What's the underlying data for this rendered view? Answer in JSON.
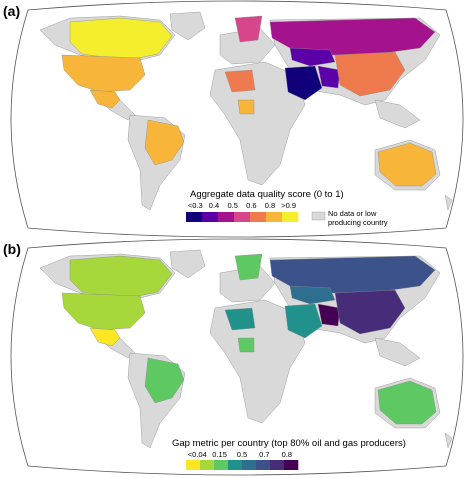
{
  "panel_a": {
    "label": "(a)",
    "legend": {
      "title": "Aggregate data quality score (0 to 1)",
      "ticks": [
        "<0.3",
        "0.4",
        "0.5",
        "0.6",
        "0.8",
        ">0.9"
      ],
      "colors": [
        "#10007a",
        "#5b00a8",
        "#a4138d",
        "#d7458a",
        "#ef7a4d",
        "#f7b63a",
        "#f4ee2c"
      ],
      "no_data_label": "No data or low producing country",
      "no_data_color": "#d9d9d9"
    }
  },
  "panel_b": {
    "label": "(b)",
    "legend": {
      "title": "Gap metric per country (top 80% oil and gas producers)",
      "ticks": [
        "<0.04",
        "0.15",
        "0.5",
        "0.7",
        "0.8"
      ],
      "colors": [
        "#fde725",
        "#a6d83c",
        "#5ec962",
        "#21918c",
        "#2e6e8e",
        "#3b528b",
        "#472c7a",
        "#440154"
      ]
    }
  },
  "map_colors": {
    "land": "#d9d9d9",
    "ocean": "#ffffff",
    "border": "#8c8c8c"
  }
}
